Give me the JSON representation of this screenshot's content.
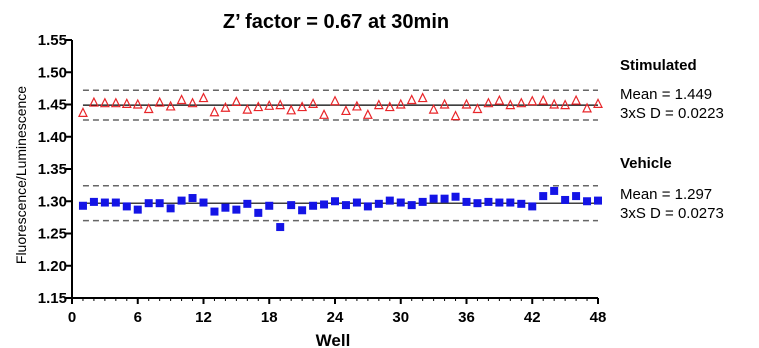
{
  "chart_data": {
    "type": "scatter",
    "title": "Z’ factor = 0.67 at 30min",
    "xlabel": "Well",
    "ylabel": "Fluorescence/Luminescence",
    "xlim": [
      0,
      48
    ],
    "ylim": [
      1.15,
      1.55
    ],
    "xticks": [
      "0",
      "6",
      "12",
      "18",
      "24",
      "30",
      "36",
      "42",
      "48"
    ],
    "yticks": [
      "1.15",
      "1.20",
      "1.25",
      "1.30",
      "1.35",
      "1.40",
      "1.45",
      "1.50",
      "1.55"
    ],
    "series": [
      {
        "name": "Stimulated",
        "marker": "triangle-open",
        "color": "#e8262a",
        "mean": 1.449,
        "upper": 1.472,
        "lower": 1.426,
        "x": [
          1,
          2,
          3,
          4,
          5,
          6,
          7,
          8,
          9,
          10,
          11,
          12,
          13,
          14,
          15,
          16,
          17,
          18,
          19,
          20,
          21,
          22,
          23,
          24,
          25,
          26,
          27,
          28,
          29,
          30,
          31,
          32,
          33,
          34,
          35,
          36,
          37,
          38,
          39,
          40,
          41,
          42,
          43,
          44,
          45,
          46,
          47,
          48
        ],
        "values": [
          1.437,
          1.453,
          1.452,
          1.452,
          1.451,
          1.45,
          1.443,
          1.453,
          1.447,
          1.457,
          1.452,
          1.46,
          1.438,
          1.445,
          1.454,
          1.442,
          1.446,
          1.448,
          1.449,
          1.441,
          1.446,
          1.451,
          1.434,
          1.455,
          1.44,
          1.447,
          1.434,
          1.449,
          1.446,
          1.45,
          1.457,
          1.46,
          1.442,
          1.45,
          1.432,
          1.45,
          1.443,
          1.452,
          1.456,
          1.449,
          1.452,
          1.455,
          1.456,
          1.45,
          1.449,
          1.456,
          1.444,
          1.451
        ]
      },
      {
        "name": "Vehicle",
        "marker": "square",
        "color": "#1414e6",
        "mean": 1.297,
        "upper": 1.324,
        "lower": 1.27,
        "x": [
          1,
          2,
          3,
          4,
          5,
          6,
          7,
          8,
          9,
          10,
          11,
          12,
          13,
          14,
          15,
          16,
          17,
          18,
          19,
          20,
          21,
          22,
          23,
          24,
          25,
          26,
          27,
          28,
          29,
          30,
          31,
          32,
          33,
          34,
          35,
          36,
          37,
          38,
          39,
          40,
          41,
          42,
          43,
          44,
          45,
          46,
          47,
          48
        ],
        "values": [
          1.293,
          1.299,
          1.298,
          1.298,
          1.292,
          1.287,
          1.297,
          1.297,
          1.289,
          1.301,
          1.305,
          1.298,
          1.284,
          1.29,
          1.287,
          1.296,
          1.282,
          1.293,
          1.26,
          1.294,
          1.286,
          1.293,
          1.295,
          1.3,
          1.294,
          1.298,
          1.292,
          1.296,
          1.301,
          1.298,
          1.294,
          1.299,
          1.304,
          1.304,
          1.307,
          1.299,
          1.297,
          1.299,
          1.298,
          1.298,
          1.296,
          1.292,
          1.308,
          1.316,
          1.302,
          1.308,
          1.3,
          1.301
        ]
      }
    ],
    "annotations": [
      {
        "heading": "Stimulated",
        "mean_text": "Mean = 1.449",
        "sd_text": "3xS D = 0.0223"
      },
      {
        "heading": "Vehicle",
        "mean_text": "Mean = 1.297",
        "sd_text": "3xS D = 0.0273"
      }
    ]
  }
}
